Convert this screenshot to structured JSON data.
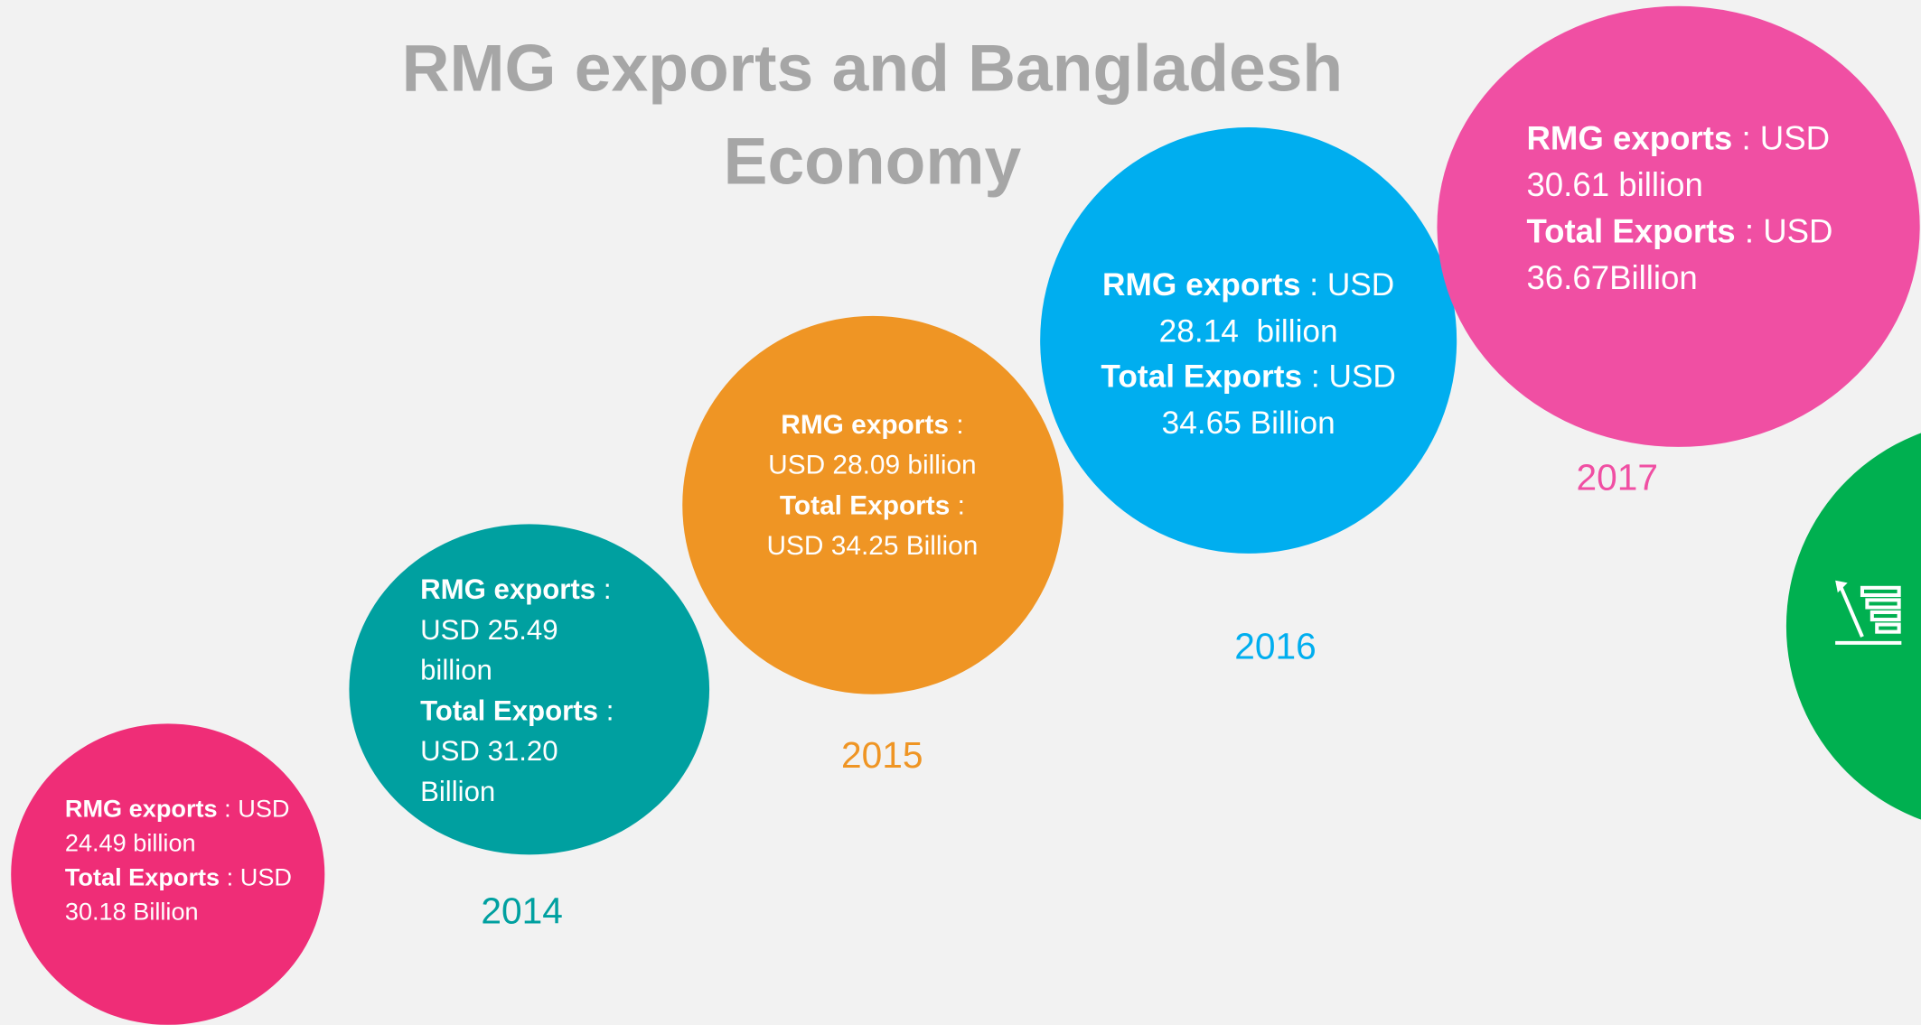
{
  "title": "RMG exports and Bangladesh Economy",
  "circles": [
    {
      "rmg_label": "RMG exports",
      "rmg_value": " : USD 24.49 billion",
      "total_label": "Total Exports",
      "total_value": " : USD 30.18 Billion"
    },
    {
      "rmg_label": "RMG exports",
      "rmg_value": " : USD 25.49 billion",
      "total_label": "Total Exports",
      "total_value": " : USD 31.20 Billion",
      "year": "2014"
    },
    {
      "rmg_label": "RMG exports",
      "rmg_value": " : USD 28.09 billion",
      "total_label": "Total Exports",
      "total_value": " : USD 34.25 Billion",
      "year": "2015"
    },
    {
      "rmg_label": "RMG exports",
      "rmg_value": " : USD 28.14  billion",
      "total_label": "Total Exports",
      "total_value": " : USD 34.65 Billion",
      "year": "2016"
    },
    {
      "rmg_label": "RMG exports",
      "rmg_value": " : USD 30.61 billion",
      "total_label": "Total Exports",
      "total_value": " : USD 36.67Billion",
      "year": "2017"
    }
  ]
}
